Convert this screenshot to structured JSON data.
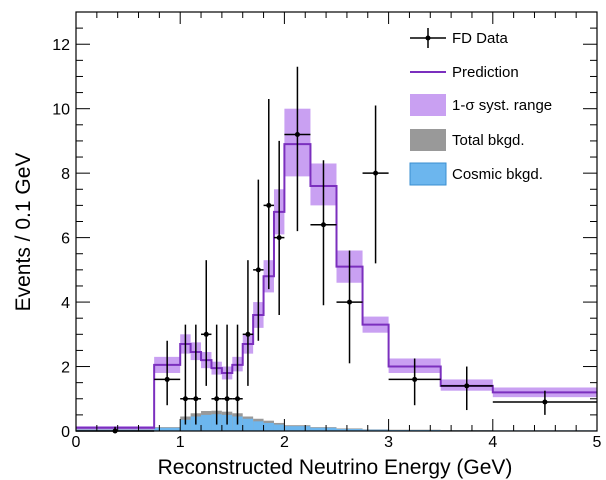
{
  "chart_data": {
    "type": "histogram",
    "xlabel": "Reconstructed Neutrino Energy (GeV)",
    "ylabel": "Events / 0.1 GeV",
    "xlim": [
      0,
      5
    ],
    "ylim": [
      0,
      13
    ],
    "x_ticks": [
      0,
      1,
      2,
      3,
      4,
      5
    ],
    "y_ticks": [
      0,
      2,
      4,
      6,
      8,
      10,
      12
    ],
    "grid": false,
    "legend_position": "top-right",
    "legend": [
      {
        "label": "FD Data",
        "kind": "data"
      },
      {
        "label": "Prediction",
        "kind": "line"
      },
      {
        "label": "1-σ syst. range",
        "kind": "band"
      },
      {
        "label": "Total bkgd.",
        "kind": "fill-gray"
      },
      {
        "label": "Cosmic bkgd.",
        "kind": "fill-blue"
      }
    ],
    "colors": {
      "prediction": "#7b2fbe",
      "syst_band": "#c9a0f2",
      "total_bkgd": "#999999",
      "cosmic_bkgd": "#6cb6ee",
      "cosmic_edge": "#3a8fd0"
    },
    "bin_edges": [
      0,
      0.75,
      1.0,
      1.1,
      1.2,
      1.3,
      1.4,
      1.5,
      1.6,
      1.7,
      1.8,
      1.9,
      2.0,
      2.25,
      2.5,
      2.75,
      3.0,
      3.5,
      4.0,
      5.0
    ],
    "prediction": [
      0.1,
      2.05,
      2.7,
      2.45,
      2.2,
      1.95,
      1.8,
      2.05,
      2.7,
      3.6,
      4.8,
      6.8,
      8.9,
      7.6,
      5.1,
      3.3,
      2.0,
      1.4,
      1.2
    ],
    "syst_low": [
      0.05,
      1.8,
      2.4,
      2.2,
      1.95,
      1.75,
      1.6,
      1.85,
      2.4,
      3.2,
      4.3,
      6.1,
      7.9,
      7.0,
      4.6,
      3.05,
      1.8,
      1.25,
      1.05
    ],
    "syst_high": [
      0.15,
      2.3,
      3.0,
      2.75,
      2.45,
      2.15,
      2.0,
      2.3,
      3.0,
      4.0,
      5.3,
      7.5,
      10.0,
      8.3,
      5.6,
      3.55,
      2.25,
      1.6,
      1.35
    ],
    "total_bkgd": [
      0.05,
      0.12,
      0.45,
      0.55,
      0.62,
      0.63,
      0.6,
      0.55,
      0.45,
      0.38,
      0.32,
      0.25,
      0.18,
      0.12,
      0.08,
      0.05,
      0.04,
      0.03,
      0.02
    ],
    "cosmic_bkgd": [
      0.04,
      0.1,
      0.35,
      0.45,
      0.5,
      0.52,
      0.5,
      0.45,
      0.38,
      0.3,
      0.25,
      0.2,
      0.15,
      0.1,
      0.06,
      0.04,
      0.03,
      0.02,
      0.02
    ],
    "data_points": [
      {
        "x": 0.375,
        "xerr": 0.375,
        "y": 0.0,
        "yerr_low": 0.0,
        "yerr_high": 0.13
      },
      {
        "x": 0.875,
        "xerr": 0.125,
        "y": 1.6,
        "yerr_low": 0.8,
        "yerr_high": 1.2
      },
      {
        "x": 1.05,
        "xerr": 0.05,
        "y": 1.0,
        "yerr_low": 0.8,
        "yerr_high": 2.3
      },
      {
        "x": 1.15,
        "xerr": 0.05,
        "y": 1.0,
        "yerr_low": 0.8,
        "yerr_high": 2.3
      },
      {
        "x": 1.25,
        "xerr": 0.05,
        "y": 3.0,
        "yerr_low": 1.6,
        "yerr_high": 2.3
      },
      {
        "x": 1.35,
        "xerr": 0.05,
        "y": 1.0,
        "yerr_low": 0.8,
        "yerr_high": 2.3
      },
      {
        "x": 1.45,
        "xerr": 0.05,
        "y": 1.0,
        "yerr_low": 0.8,
        "yerr_high": 2.3
      },
      {
        "x": 1.55,
        "xerr": 0.05,
        "y": 1.0,
        "yerr_low": 0.8,
        "yerr_high": 2.3
      },
      {
        "x": 1.65,
        "xerr": 0.05,
        "y": 3.0,
        "yerr_low": 1.6,
        "yerr_high": 2.3
      },
      {
        "x": 1.75,
        "xerr": 0.05,
        "y": 5.0,
        "yerr_low": 2.2,
        "yerr_high": 2.8
      },
      {
        "x": 1.85,
        "xerr": 0.05,
        "y": 7.0,
        "yerr_low": 2.6,
        "yerr_high": 3.3
      },
      {
        "x": 1.95,
        "xerr": 0.05,
        "y": 6.0,
        "yerr_low": 2.4,
        "yerr_high": 3.0
      },
      {
        "x": 2.125,
        "xerr": 0.125,
        "y": 9.2,
        "yerr_low": 3.0,
        "yerr_high": 2.1
      },
      {
        "x": 2.375,
        "xerr": 0.125,
        "y": 6.4,
        "yerr_low": 2.5,
        "yerr_high": 2.0
      },
      {
        "x": 2.625,
        "xerr": 0.125,
        "y": 4.0,
        "yerr_low": 1.9,
        "yerr_high": 1.6
      },
      {
        "x": 2.875,
        "xerr": 0.125,
        "y": 8.0,
        "yerr_low": 2.8,
        "yerr_high": 2.1
      },
      {
        "x": 3.25,
        "xerr": 0.25,
        "y": 1.6,
        "yerr_low": 0.8,
        "yerr_high": 0.65
      },
      {
        "x": 3.75,
        "xerr": 0.25,
        "y": 1.4,
        "yerr_low": 0.75,
        "yerr_high": 0.6
      },
      {
        "x": 4.5,
        "xerr": 0.5,
        "y": 0.9,
        "yerr_low": 0.4,
        "yerr_high": 0.35
      }
    ]
  }
}
